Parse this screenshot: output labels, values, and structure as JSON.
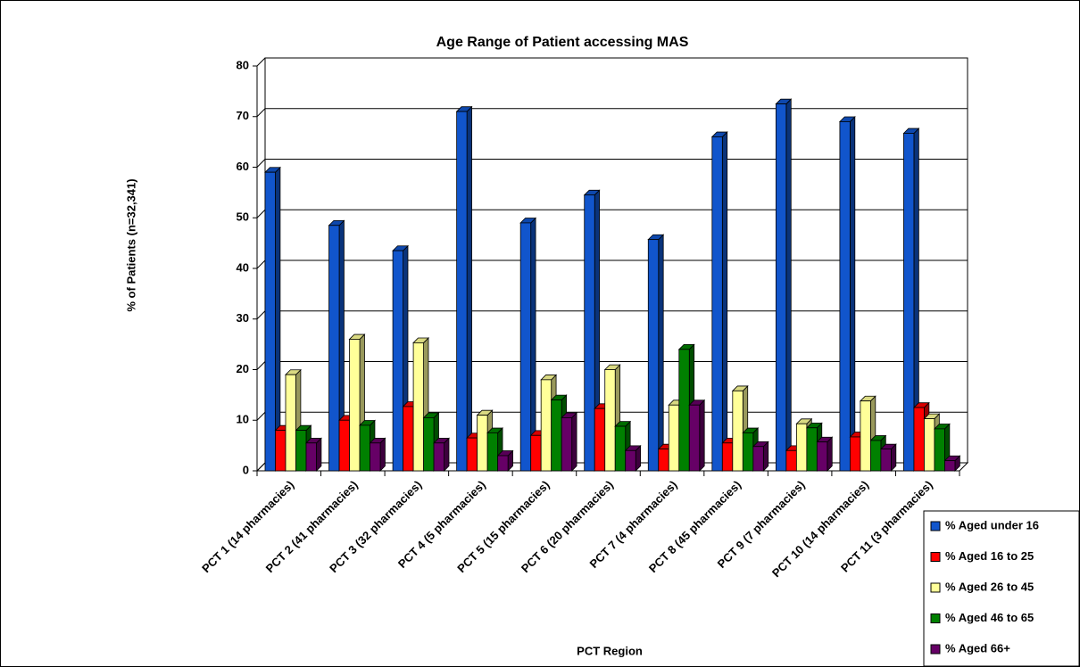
{
  "chart_data": {
    "type": "bar3d",
    "title": "Age Range of Patient accessing MAS",
    "x_label": "PCT Region",
    "y_label": "% of Patients (n=32,341)",
    "categories": [
      "PCT 1 (14 pharmacies)",
      "PCT 2 (41 pharmacies)",
      "PCT 3 (32 pharmacies)",
      "PCT 4 (5 pharmacies)",
      "PCT 5 (15 pharmacies)",
      "PCT 6 (20 pharmacies)",
      "PCT 7 (4 pharmacies)",
      "PCT 8 (45 pharmacies)",
      "PCT 9 (7 pharmacies)",
      "PCT 10 (14 pharmacies)",
      "PCT 11 (3 pharmacies)"
    ],
    "series": [
      {
        "name": "% Aged under 16",
        "color": "#1155cc",
        "values": [
          59,
          48.5,
          43.5,
          71,
          49,
          54.5,
          45.7,
          66,
          72.5,
          69,
          66.7
        ]
      },
      {
        "name": "% Aged 16 to 25",
        "color": "#ff0000",
        "values": [
          8,
          10,
          12.7,
          6.5,
          7,
          12.3,
          4.3,
          5.5,
          4,
          6.7,
          12.5
        ]
      },
      {
        "name": "% Aged 26 to 45",
        "color": "#ffff99",
        "values": [
          19,
          26,
          25.3,
          11,
          18,
          20,
          13,
          15.8,
          9.3,
          13.8,
          10.3
        ]
      },
      {
        "name": "% Aged 46 to 65",
        "color": "#008000",
        "values": [
          8,
          9,
          10.5,
          7.5,
          14,
          8.8,
          24,
          7.5,
          8.5,
          6,
          8.3
        ]
      },
      {
        "name": "% Aged 66+",
        "color": "#660066",
        "values": [
          5.5,
          5.5,
          5.5,
          3,
          10.5,
          4,
          13,
          4.8,
          5.7,
          4.3,
          2
        ]
      }
    ],
    "ylim": [
      0,
      80
    ],
    "yticks": [
      0,
      10,
      20,
      30,
      40,
      50,
      60,
      70,
      80
    ],
    "grid": true,
    "legend": "bottom-right"
  }
}
